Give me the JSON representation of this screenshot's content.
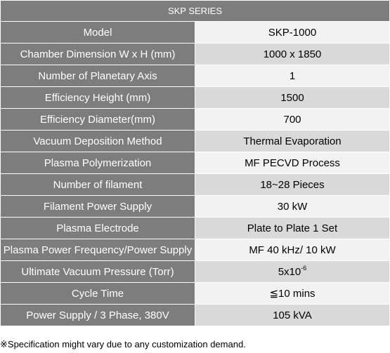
{
  "table": {
    "header": "SKP SERIES",
    "rows": [
      {
        "label": "Model",
        "value": "SKP-1000"
      },
      {
        "label": "Chamber Dimension W x H (mm)",
        "value": "1000 x 1850"
      },
      {
        "label": "Number of Planetary Axis",
        "value": "1"
      },
      {
        "label": "Efficiency Height  (mm)",
        "value": "1500"
      },
      {
        "label": "Efficiency Diameter(mm)",
        "value": "700"
      },
      {
        "label": "Vacuum Deposition Method",
        "value": "Thermal Evaporation"
      },
      {
        "label": "Plasma Polymerization",
        "value": "MF PECVD Process"
      },
      {
        "label": "Number of filament",
        "value": "18~28 Pieces"
      },
      {
        "label": "Filament Power Supply",
        "value": "30  kW"
      },
      {
        "label": "Plasma Electrode",
        "value": "Plate to Plate 1 Set"
      },
      {
        "label": "Plasma Power Frequency/Power Supply",
        "value": "MF 40 kHz/ 10 kW"
      },
      {
        "label": "Ultimate Vacuum Pressure  (Torr)",
        "value_base": "5x10",
        "value_exp": "-6"
      },
      {
        "label": "Cycle Time",
        "value": "≦10 mins"
      },
      {
        "label": "Power Supply  / 3 Phase, 380V",
        "value": "105 kVA"
      }
    ]
  },
  "footnote": "※Specification might vary due to any customization demand."
}
